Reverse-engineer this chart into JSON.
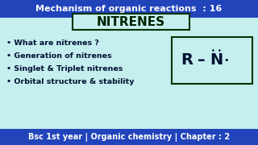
{
  "bg_color": "#c5eeee",
  "header_bg": "#2244bb",
  "header_text": "Mechanism of organic reactions  : 16",
  "header_text_color": "#ffffff",
  "footer_bg": "#2244bb",
  "footer_text": "Bsc 1st year | Organic chemistry | Chapter : 2",
  "footer_text_color": "#ffffff",
  "title_box_text": "NITRENES",
  "title_box_color": "#002200",
  "title_box_border": "#003300",
  "bullet_points": [
    "• What are nitrenes ?",
    "• Generation of nitrenes",
    "• Singlet & Triplet nitrenes",
    "• Orbital structure & stability"
  ],
  "bullet_color": "#001133",
  "formula_box_border": "#003300"
}
